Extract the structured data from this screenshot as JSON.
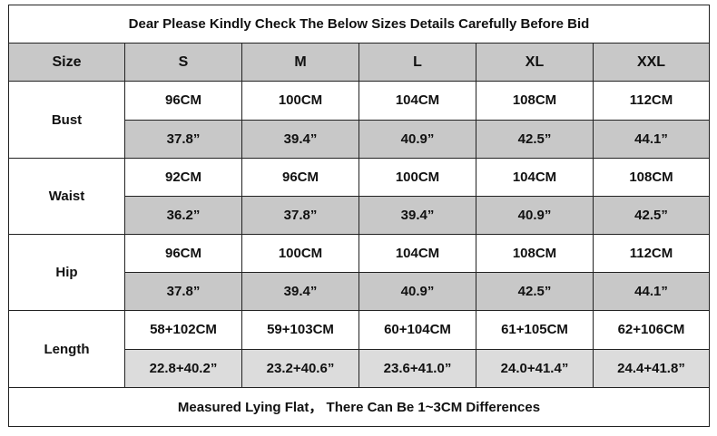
{
  "title": "Dear Please Kindly Check The Below Sizes Details Carefully Before Bid",
  "header": [
    "Size",
    "S",
    "M",
    "L",
    "XL",
    "XXL"
  ],
  "rows": [
    {
      "label": "Bust",
      "cm": [
        "96CM",
        "100CM",
        "104CM",
        "108CM",
        "112CM"
      ],
      "inch": [
        "37.8”",
        "39.4”",
        "40.9”",
        "42.5”",
        "44.1”"
      ]
    },
    {
      "label": "Waist",
      "cm": [
        "92CM",
        "96CM",
        "100CM",
        "104CM",
        "108CM"
      ],
      "inch": [
        "36.2”",
        "37.8”",
        "39.4”",
        "40.9”",
        "42.5”"
      ]
    },
    {
      "label": "Hip",
      "cm": [
        "96CM",
        "100CM",
        "104CM",
        "108CM",
        "112CM"
      ],
      "inch": [
        "37.8”",
        "39.4”",
        "40.9”",
        "42.5”",
        "44.1”"
      ]
    },
    {
      "label": "Length",
      "cm": [
        "58+102CM",
        "59+103CM",
        "60+104CM",
        "61+105CM",
        "62+106CM"
      ],
      "inch": [
        "22.8+40.2”",
        "23.2+40.6”",
        "23.6+41.0”",
        "24.0+41.4”",
        "24.4+41.8”"
      ]
    }
  ],
  "footer": "Measured Lying Flat， There Can Be 1~3CM Differences",
  "colors": {
    "header_bg": "#c8c8c8",
    "inch_row_bg": "#c8c8c8",
    "length_inch_row_bg": "#dcdcdc",
    "border": "#222222"
  }
}
